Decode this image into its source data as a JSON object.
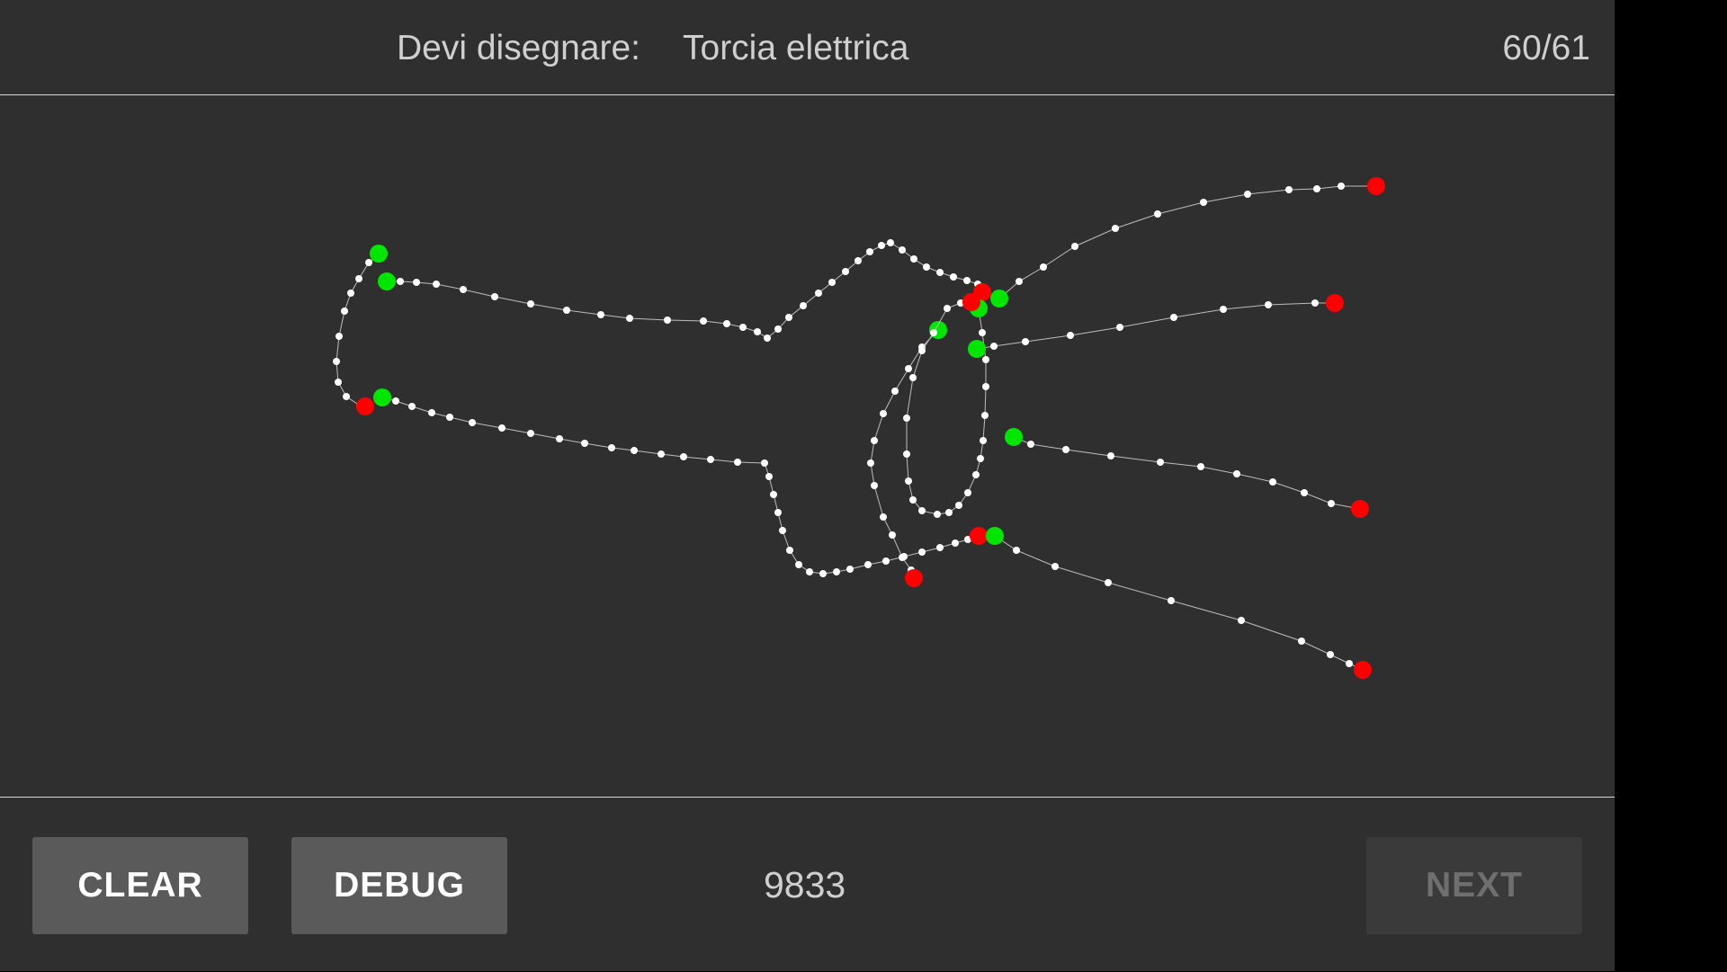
{
  "header": {
    "prompt_label": "Devi disegnare:",
    "prompt_word": "Torcia elettrica",
    "counter": "60/61"
  },
  "footer": {
    "clear_label": "CLEAR",
    "debug_label": "DEBUG",
    "score": "9833",
    "next_label": "NEXT",
    "next_enabled": false
  },
  "colors": {
    "background": "#2f2f2f",
    "stroke_point": "#ffffff",
    "stroke_start": "#00e600",
    "stroke_end": "#ff0000",
    "divider": "#d8d8d8"
  }
}
